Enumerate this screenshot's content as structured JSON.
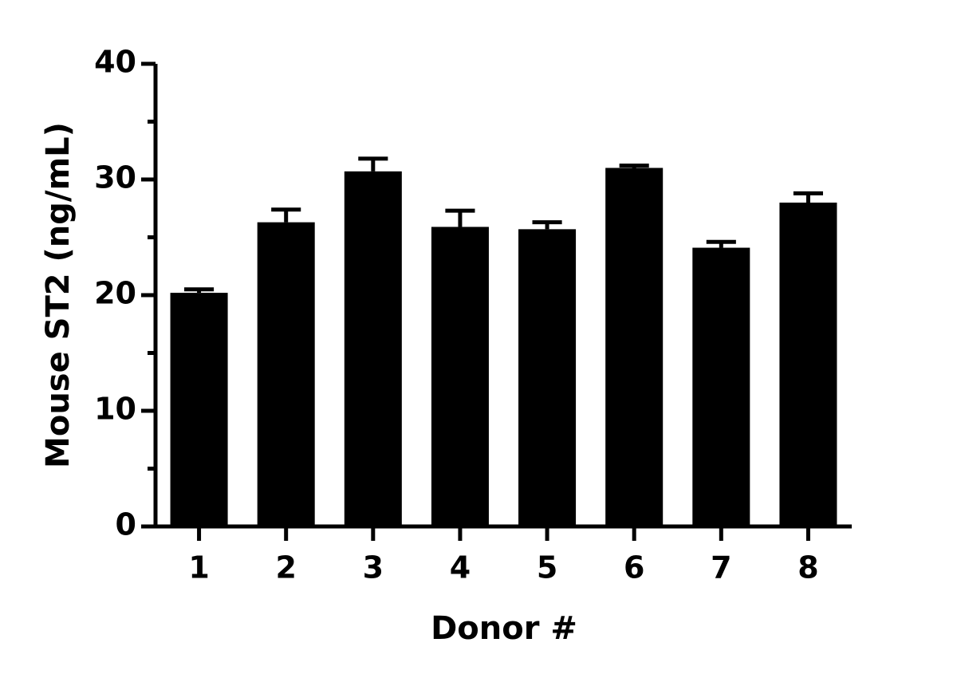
{
  "chart_data": {
    "type": "bar",
    "xlabel": "Donor #",
    "ylabel": "Mouse ST2 (ng/mL)",
    "categories": [
      "1",
      "2",
      "3",
      "4",
      "5",
      "6",
      "7",
      "8"
    ],
    "values": [
      20.2,
      26.3,
      30.7,
      25.9,
      25.7,
      31.0,
      24.1,
      28.0
    ],
    "errors": [
      0.3,
      1.1,
      1.1,
      1.4,
      0.6,
      0.2,
      0.5,
      0.8
    ],
    "color": "#000000",
    "ylim": [
      0,
      40
    ],
    "yticks": [
      0,
      10,
      20,
      30,
      40
    ],
    "minor_yticks": [
      5,
      15,
      25,
      35
    ],
    "grid": false
  }
}
